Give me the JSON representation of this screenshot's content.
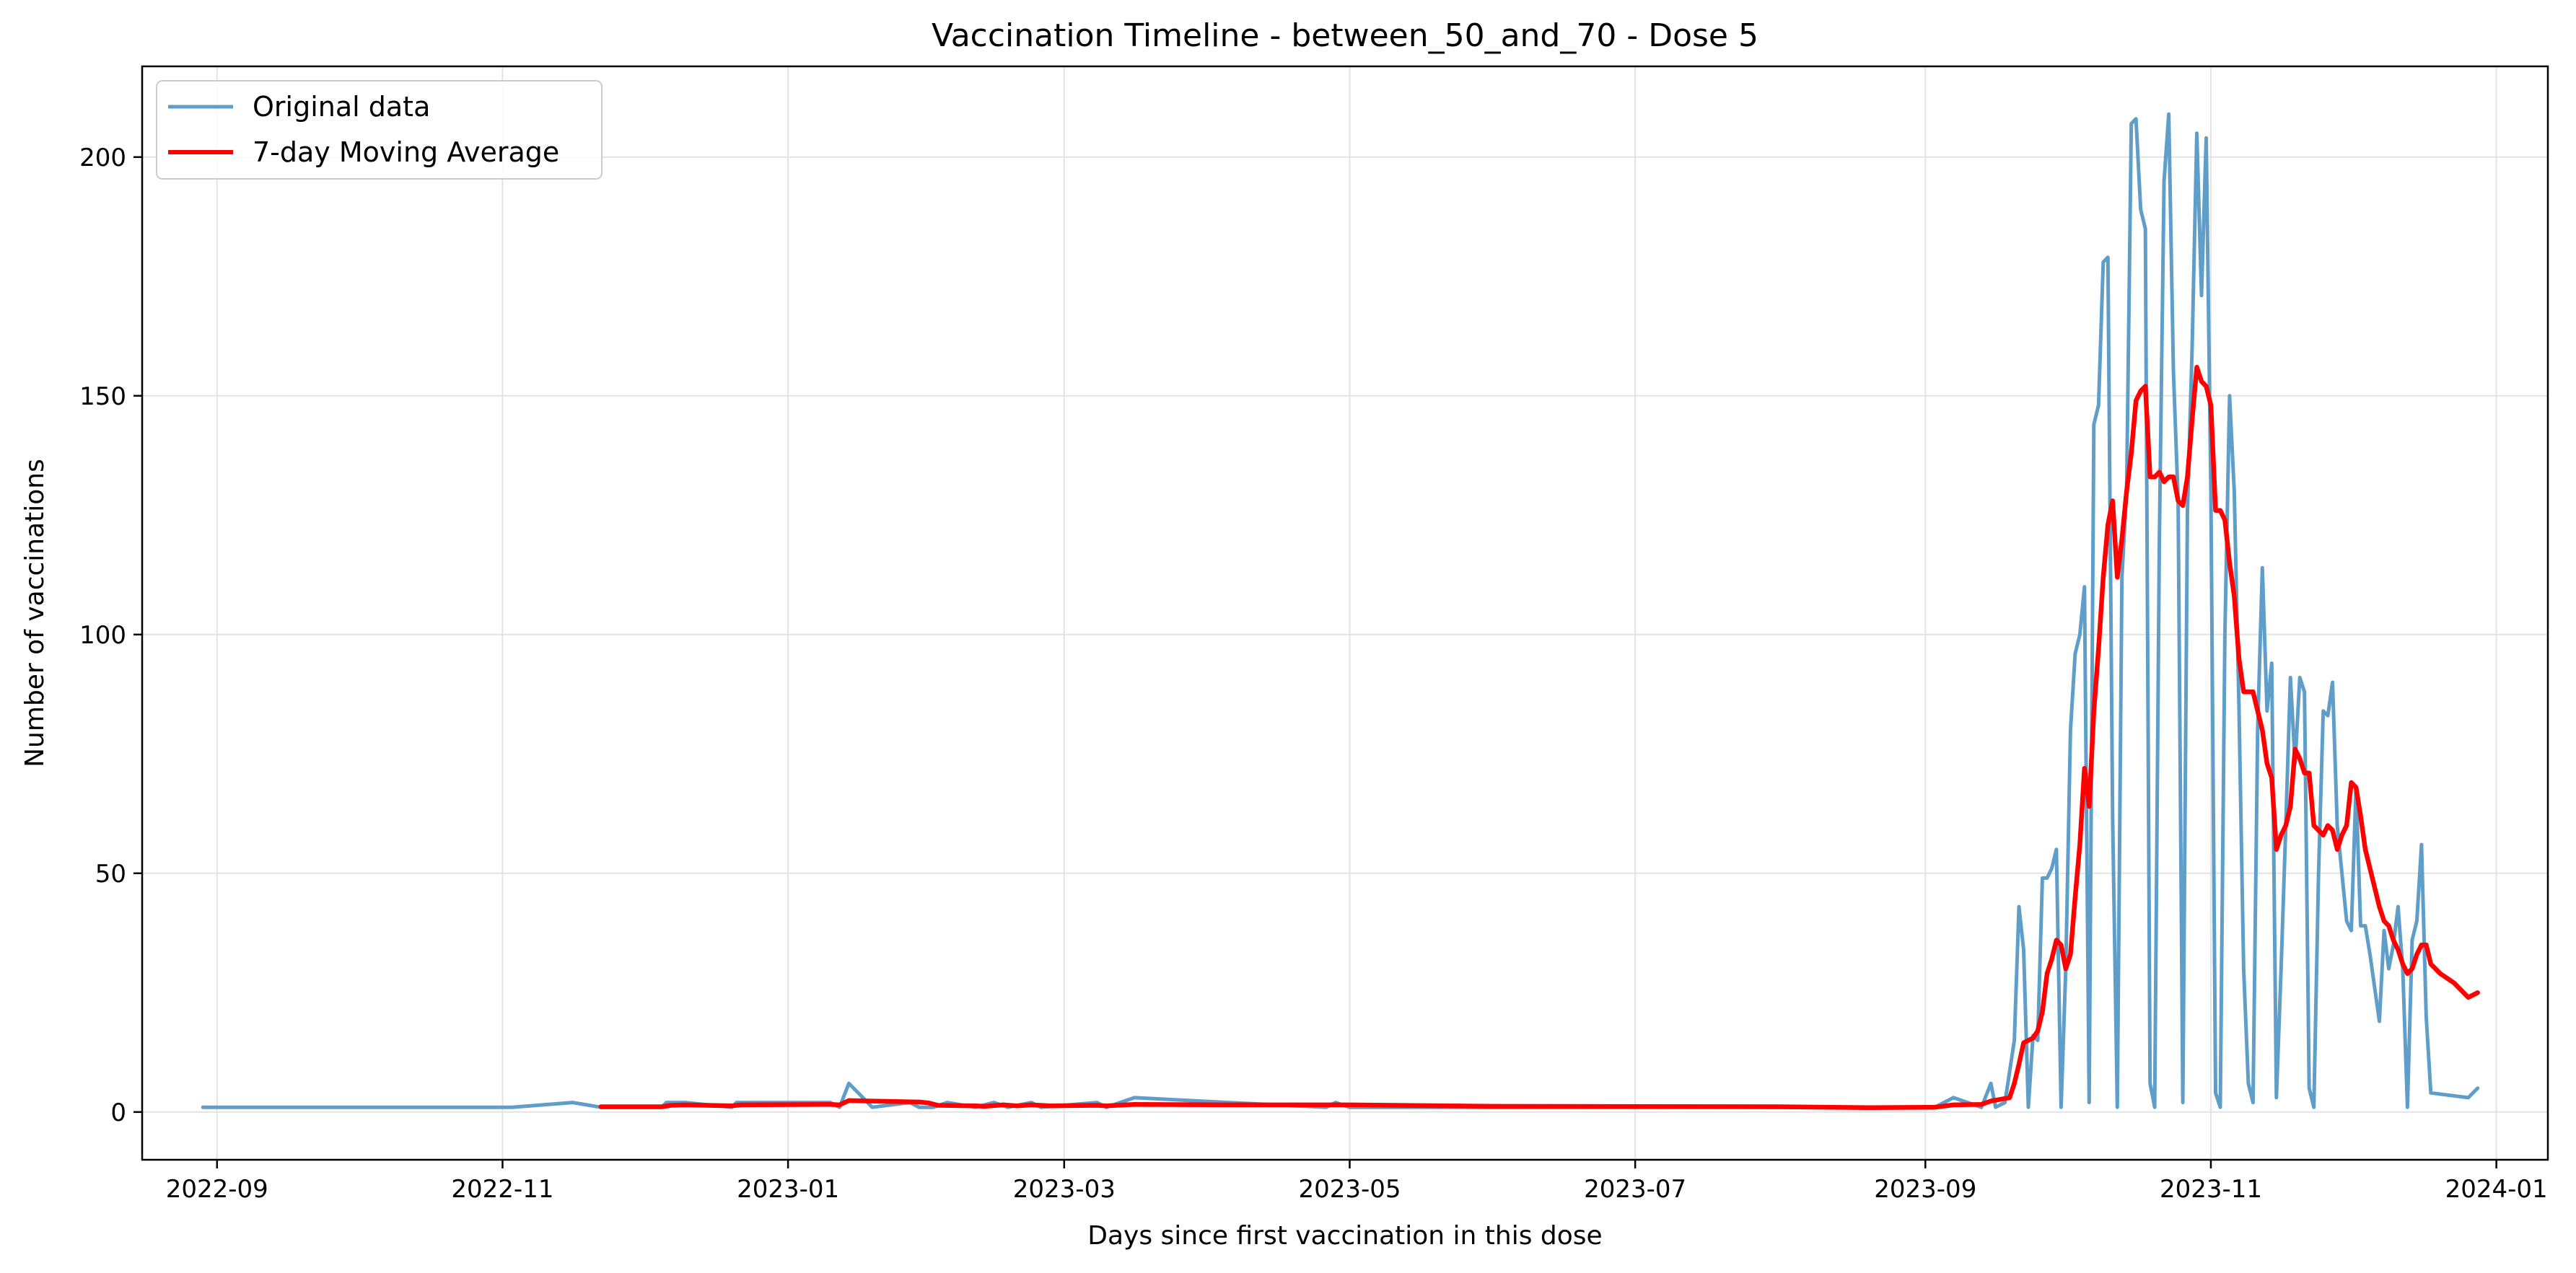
{
  "chart_data": {
    "type": "line",
    "title": "Vaccination Timeline - between_50_and_70 - Dose 5",
    "xlabel": "Days since first vaccination in this dose",
    "ylabel": "Number of vaccinations",
    "xlim": [
      "2022-08-16",
      "2024-01-12"
    ],
    "ylim": [
      -10,
      219
    ],
    "x_ticks": [
      "2022-09-01",
      "2022-11-01",
      "2023-01-01",
      "2023-03-01",
      "2023-05-01",
      "2023-07-01",
      "2023-09-01",
      "2023-11-01",
      "2024-01-01"
    ],
    "x_tick_labels": [
      "2022-09",
      "2022-11",
      "2023-01",
      "2023-03",
      "2023-05",
      "2023-07",
      "2023-09",
      "2023-11",
      "2024-01"
    ],
    "y_ticks": [
      0,
      50,
      100,
      150,
      200
    ],
    "y_tick_labels": [
      "0",
      "50",
      "100",
      "150",
      "200"
    ],
    "grid": true,
    "legend_position": "top-left",
    "series": [
      {
        "name": "Original data",
        "color": "#5f9ec9",
        "points": [
          [
            "2022-08-29",
            1
          ],
          [
            "2022-11-03",
            1
          ],
          [
            "2022-11-16",
            2
          ],
          [
            "2022-11-22",
            1
          ],
          [
            "2022-12-05",
            1
          ],
          [
            "2022-12-06",
            2
          ],
          [
            "2022-12-10",
            2
          ],
          [
            "2022-12-20",
            1
          ],
          [
            "2022-12-21",
            2
          ],
          [
            "2023-01-10",
            2
          ],
          [
            "2023-01-12",
            1
          ],
          [
            "2023-01-14",
            6
          ],
          [
            "2023-01-16",
            4
          ],
          [
            "2023-01-19",
            1
          ],
          [
            "2023-01-27",
            2
          ],
          [
            "2023-01-29",
            1
          ],
          [
            "2023-02-01",
            1
          ],
          [
            "2023-02-04",
            2
          ],
          [
            "2023-02-10",
            1
          ],
          [
            "2023-02-14",
            2
          ],
          [
            "2023-02-17",
            1
          ],
          [
            "2023-02-22",
            2
          ],
          [
            "2023-02-24",
            1
          ],
          [
            "2023-03-08",
            2
          ],
          [
            "2023-03-10",
            1
          ],
          [
            "2023-03-16",
            3
          ],
          [
            "2023-04-05",
            2
          ],
          [
            "2023-04-26",
            1
          ],
          [
            "2023-04-28",
            2
          ],
          [
            "2023-05-01",
            1
          ],
          [
            "2023-05-05",
            1
          ],
          [
            "2023-08-01",
            1
          ],
          [
            "2023-09-03",
            1
          ],
          [
            "2023-09-07",
            3
          ],
          [
            "2023-09-10",
            2
          ],
          [
            "2023-09-13",
            1
          ],
          [
            "2023-09-15",
            6
          ],
          [
            "2023-09-16",
            1
          ],
          [
            "2023-09-18",
            2
          ],
          [
            "2023-09-20",
            15
          ],
          [
            "2023-09-21",
            43
          ],
          [
            "2023-09-22",
            34
          ],
          [
            "2023-09-23",
            1
          ],
          [
            "2023-09-24",
            16
          ],
          [
            "2023-09-25",
            15
          ],
          [
            "2023-09-26",
            49
          ],
          [
            "2023-09-27",
            49
          ],
          [
            "2023-09-28",
            51
          ],
          [
            "2023-09-29",
            55
          ],
          [
            "2023-09-30",
            1
          ],
          [
            "2023-10-01",
            30
          ],
          [
            "2023-10-02",
            80
          ],
          [
            "2023-10-03",
            96
          ],
          [
            "2023-10-04",
            100
          ],
          [
            "2023-10-05",
            110
          ],
          [
            "2023-10-06",
            2
          ],
          [
            "2023-10-07",
            144
          ],
          [
            "2023-10-08",
            148
          ],
          [
            "2023-10-09",
            178
          ],
          [
            "2023-10-10",
            179
          ],
          [
            "2023-10-11",
            62
          ],
          [
            "2023-10-12",
            1
          ],
          [
            "2023-10-13",
            112
          ],
          [
            "2023-10-14",
            130
          ],
          [
            "2023-10-15",
            207
          ],
          [
            "2023-10-16",
            208
          ],
          [
            "2023-10-17",
            189
          ],
          [
            "2023-10-18",
            185
          ],
          [
            "2023-10-19",
            6
          ],
          [
            "2023-10-20",
            1
          ],
          [
            "2023-10-21",
            120
          ],
          [
            "2023-10-22",
            195
          ],
          [
            "2023-10-23",
            209
          ],
          [
            "2023-10-24",
            155
          ],
          [
            "2023-10-25",
            128
          ],
          [
            "2023-10-26",
            2
          ],
          [
            "2023-10-27",
            126
          ],
          [
            "2023-10-28",
            160
          ],
          [
            "2023-10-29",
            205
          ],
          [
            "2023-10-30",
            171
          ],
          [
            "2023-10-31",
            204
          ],
          [
            "2023-11-01",
            130
          ],
          [
            "2023-11-02",
            4
          ],
          [
            "2023-11-03",
            1
          ],
          [
            "2023-11-04",
            100
          ],
          [
            "2023-11-05",
            150
          ],
          [
            "2023-11-06",
            130
          ],
          [
            "2023-11-07",
            85
          ],
          [
            "2023-11-08",
            30
          ],
          [
            "2023-11-09",
            6
          ],
          [
            "2023-11-10",
            2
          ],
          [
            "2023-11-11",
            80
          ],
          [
            "2023-11-12",
            114
          ],
          [
            "2023-11-13",
            84
          ],
          [
            "2023-11-14",
            94
          ],
          [
            "2023-11-15",
            3
          ],
          [
            "2023-11-16",
            30
          ],
          [
            "2023-11-17",
            60
          ],
          [
            "2023-11-18",
            91
          ],
          [
            "2023-11-19",
            73
          ],
          [
            "2023-11-20",
            91
          ],
          [
            "2023-11-21",
            88
          ],
          [
            "2023-11-22",
            5
          ],
          [
            "2023-11-23",
            1
          ],
          [
            "2023-11-24",
            50
          ],
          [
            "2023-11-25",
            84
          ],
          [
            "2023-11-26",
            83
          ],
          [
            "2023-11-27",
            90
          ],
          [
            "2023-11-28",
            60
          ],
          [
            "2023-11-29",
            50
          ],
          [
            "2023-11-30",
            40
          ],
          [
            "2023-12-01",
            38
          ],
          [
            "2023-12-02",
            68
          ],
          [
            "2023-12-03",
            39
          ],
          [
            "2023-12-04",
            39
          ],
          [
            "2023-12-05",
            33
          ],
          [
            "2023-12-07",
            19
          ],
          [
            "2023-12-08",
            38
          ],
          [
            "2023-12-09",
            30
          ],
          [
            "2023-12-10",
            35
          ],
          [
            "2023-12-11",
            43
          ],
          [
            "2023-12-12",
            30
          ],
          [
            "2023-12-13",
            1
          ],
          [
            "2023-12-14",
            36
          ],
          [
            "2023-12-15",
            40
          ],
          [
            "2023-12-16",
            56
          ],
          [
            "2023-12-17",
            20
          ],
          [
            "2023-12-18",
            4
          ],
          [
            "2023-12-26",
            3
          ],
          [
            "2023-12-28",
            5
          ]
        ]
      },
      {
        "name": "7-day Moving Average",
        "color": "#ff0000",
        "points": [
          [
            "2022-11-22",
            1.1
          ],
          [
            "2022-12-05",
            1.1
          ],
          [
            "2022-12-07",
            1.4
          ],
          [
            "2022-12-10",
            1.5
          ],
          [
            "2022-12-20",
            1.3
          ],
          [
            "2022-12-22",
            1.5
          ],
          [
            "2023-01-10",
            1.6
          ],
          [
            "2023-01-12",
            1.5
          ],
          [
            "2023-01-14",
            2.4
          ],
          [
            "2023-01-19",
            2.3
          ],
          [
            "2023-01-29",
            2.1
          ],
          [
            "2023-01-31",
            1.9
          ],
          [
            "2023-02-02",
            1.4
          ],
          [
            "2023-02-10",
            1.3
          ],
          [
            "2023-02-12",
            1.2
          ],
          [
            "2023-02-16",
            1.5
          ],
          [
            "2023-02-19",
            1.3
          ],
          [
            "2023-02-22",
            1.5
          ],
          [
            "2023-02-26",
            1.3
          ],
          [
            "2023-03-08",
            1.4
          ],
          [
            "2023-03-10",
            1.3
          ],
          [
            "2023-03-16",
            1.6
          ],
          [
            "2023-04-05",
            1.5
          ],
          [
            "2023-05-01",
            1.5
          ],
          [
            "2023-06-01",
            1.2
          ],
          [
            "2023-08-01",
            1.1
          ],
          [
            "2023-08-20",
            0.9
          ],
          [
            "2023-09-03",
            1.0
          ],
          [
            "2023-09-07",
            1.5
          ],
          [
            "2023-09-13",
            1.6
          ],
          [
            "2023-09-15",
            2.3
          ],
          [
            "2023-09-19",
            3.0
          ],
          [
            "2023-09-20",
            6.0
          ],
          [
            "2023-09-21",
            10.0
          ],
          [
            "2023-09-22",
            14.5
          ],
          [
            "2023-09-23",
            15.0
          ],
          [
            "2023-09-24",
            15.5
          ],
          [
            "2023-09-25",
            17.0
          ],
          [
            "2023-09-26",
            21.0
          ],
          [
            "2023-09-27",
            29.0
          ],
          [
            "2023-09-28",
            32.0
          ],
          [
            "2023-09-29",
            36.0
          ],
          [
            "2023-09-30",
            35.0
          ],
          [
            "2023-10-01",
            30.0
          ],
          [
            "2023-10-02",
            33.0
          ],
          [
            "2023-10-03",
            45.0
          ],
          [
            "2023-10-04",
            56.0
          ],
          [
            "2023-10-05",
            72.0
          ],
          [
            "2023-10-06",
            64.0
          ],
          [
            "2023-10-07",
            84.0
          ],
          [
            "2023-10-08",
            97.0
          ],
          [
            "2023-10-09",
            112.0
          ],
          [
            "2023-10-10",
            123.0
          ],
          [
            "2023-10-11",
            128.0
          ],
          [
            "2023-10-12",
            112.0
          ],
          [
            "2023-10-13",
            120.0
          ],
          [
            "2023-10-14",
            130.0
          ],
          [
            "2023-10-15",
            138.0
          ],
          [
            "2023-10-16",
            149.0
          ],
          [
            "2023-10-17",
            151.0
          ],
          [
            "2023-10-18",
            152.0
          ],
          [
            "2023-10-19",
            133.0
          ],
          [
            "2023-10-20",
            133.0
          ],
          [
            "2023-10-21",
            134.0
          ],
          [
            "2023-10-22",
            132.0
          ],
          [
            "2023-10-23",
            133.0
          ],
          [
            "2023-10-24",
            133.0
          ],
          [
            "2023-10-25",
            128.0
          ],
          [
            "2023-10-26",
            127.0
          ],
          [
            "2023-10-27",
            133.0
          ],
          [
            "2023-10-28",
            145.0
          ],
          [
            "2023-10-29",
            156.0
          ],
          [
            "2023-10-30",
            153.0
          ],
          [
            "2023-10-31",
            152.0
          ],
          [
            "2023-11-01",
            148.0
          ],
          [
            "2023-11-02",
            126.0
          ],
          [
            "2023-11-03",
            126.0
          ],
          [
            "2023-11-04",
            124.0
          ],
          [
            "2023-11-05",
            115.0
          ],
          [
            "2023-11-06",
            108.0
          ],
          [
            "2023-11-07",
            95.0
          ],
          [
            "2023-11-08",
            88.0
          ],
          [
            "2023-11-09",
            88.0
          ],
          [
            "2023-11-10",
            88.0
          ],
          [
            "2023-11-11",
            84.0
          ],
          [
            "2023-11-12",
            80.0
          ],
          [
            "2023-11-13",
            73.0
          ],
          [
            "2023-11-14",
            70.0
          ],
          [
            "2023-11-15",
            55.0
          ],
          [
            "2023-11-16",
            58.0
          ],
          [
            "2023-11-17",
            60.0
          ],
          [
            "2023-11-18",
            64.0
          ],
          [
            "2023-11-19",
            76.0
          ],
          [
            "2023-11-20",
            74.0
          ],
          [
            "2023-11-21",
            71.0
          ],
          [
            "2023-11-22",
            71.0
          ],
          [
            "2023-11-23",
            60.0
          ],
          [
            "2023-11-24",
            59.0
          ],
          [
            "2023-11-25",
            58.0
          ],
          [
            "2023-11-26",
            60.0
          ],
          [
            "2023-11-27",
            59.0
          ],
          [
            "2023-11-28",
            55.0
          ],
          [
            "2023-11-29",
            58.0
          ],
          [
            "2023-11-30",
            60.0
          ],
          [
            "2023-12-01",
            69.0
          ],
          [
            "2023-12-02",
            68.0
          ],
          [
            "2023-12-03",
            62.0
          ],
          [
            "2023-12-04",
            55.0
          ],
          [
            "2023-12-05",
            51.0
          ],
          [
            "2023-12-06",
            47.0
          ],
          [
            "2023-12-07",
            43.0
          ],
          [
            "2023-12-08",
            40.0
          ],
          [
            "2023-12-09",
            39.0
          ],
          [
            "2023-12-10",
            36.0
          ],
          [
            "2023-12-11",
            34.0
          ],
          [
            "2023-12-12",
            31.0
          ],
          [
            "2023-12-13",
            29.0
          ],
          [
            "2023-12-14",
            30.0
          ],
          [
            "2023-12-15",
            33.0
          ],
          [
            "2023-12-16",
            35.0
          ],
          [
            "2023-12-17",
            35.0
          ],
          [
            "2023-12-18",
            31.0
          ],
          [
            "2023-12-20",
            29.0
          ],
          [
            "2023-12-23",
            27.0
          ],
          [
            "2023-12-26",
            24.0
          ],
          [
            "2023-12-28",
            25.0
          ]
        ]
      }
    ]
  }
}
